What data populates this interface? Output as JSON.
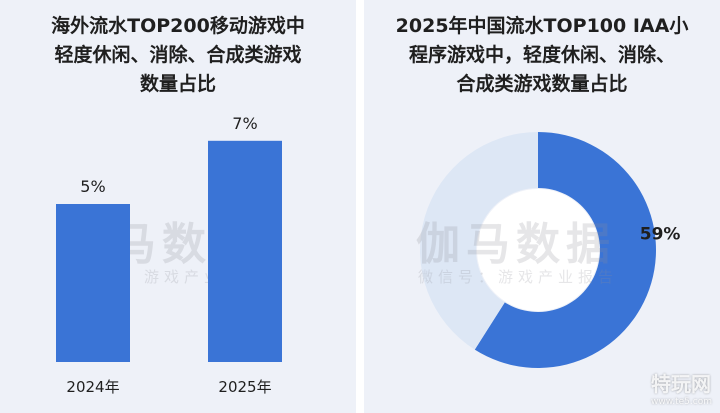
{
  "chart_data": [
    {
      "type": "bar",
      "title_lines": [
        "海外流水TOP200移动游戏中",
        "轻度休闲、消除、合成类游戏",
        "数量占比"
      ],
      "categories": [
        "2024年",
        "2025年"
      ],
      "values": [
        5,
        7
      ],
      "value_labels": [
        "5%",
        "7%"
      ],
      "ylim": [
        0,
        10
      ],
      "grid": false,
      "bar_color": "#3a74d6"
    },
    {
      "type": "pie",
      "style": "donut",
      "title_lines": [
        "2025年中国流水TOP100 IAA小",
        "程序游戏中，轻度休闲、消除、",
        "合成类游戏数量占比"
      ],
      "slices": [
        {
          "value": 59,
          "label": "59%",
          "color": "#3a74d6"
        },
        {
          "value": 41,
          "label": "",
          "color": "#dde7f5"
        }
      ]
    }
  ],
  "watermark": {
    "main": "伽马数据",
    "sub": "微信号：游戏产业报告"
  },
  "corner_logo": {
    "main": "特玩网",
    "sub": "www.te5.com"
  }
}
